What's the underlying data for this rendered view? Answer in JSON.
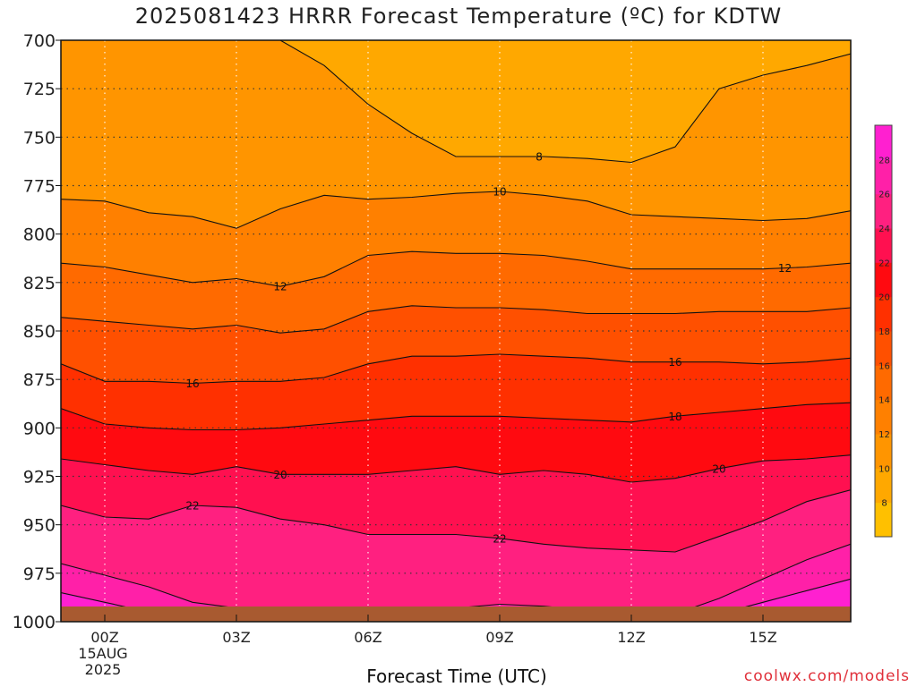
{
  "chart_data": {
    "type": "contour",
    "title": "2025081423 HRRR Forecast Temperature (ºC) for KDTW",
    "xlabel": "Forecast Time (UTC)",
    "ylabel": "",
    "credit": "coolwx.com/models",
    "x_ticks": [
      {
        "value": 1,
        "label": "00Z",
        "sub": [
          "15AUG",
          "2025"
        ]
      },
      {
        "value": 4,
        "label": "03Z"
      },
      {
        "value": 7,
        "label": "06Z"
      },
      {
        "value": 10,
        "label": "09Z"
      },
      {
        "value": 13,
        "label": "12Z"
      },
      {
        "value": 16,
        "label": "15Z"
      }
    ],
    "x_range": [
      0,
      18
    ],
    "y_range": [
      700,
      1000
    ],
    "y_axis_inverted": true,
    "y_ticks": [
      700,
      725,
      750,
      775,
      800,
      825,
      850,
      875,
      900,
      925,
      950,
      975,
      1000
    ],
    "grid": "dotted",
    "x_hours": [
      0,
      1,
      2,
      3,
      4,
      5,
      6,
      7,
      8,
      9,
      10,
      11,
      12,
      13,
      14,
      15,
      16,
      17,
      18
    ],
    "isotherms": [
      {
        "temp": 8,
        "p": [
          698,
          698,
          698,
          698,
          700,
          700,
          713,
          733,
          748,
          760,
          760,
          760,
          761,
          763,
          755,
          725,
          718,
          713,
          707
        ],
        "label_x": 10.9
      },
      {
        "temp": 10,
        "p": [
          782,
          783,
          789,
          791,
          797,
          787,
          780,
          782,
          781,
          779,
          778,
          780,
          783,
          790,
          791,
          792,
          793,
          792,
          788
        ],
        "label_x": 10
      },
      {
        "temp": 12,
        "p": [
          815,
          817,
          821,
          825,
          823,
          827,
          822,
          811,
          809,
          810,
          810,
          811,
          814,
          818,
          818,
          818,
          818,
          817,
          815
        ],
        "label_x": 5,
        "label2_x": 16.5
      },
      {
        "temp": 14,
        "p": [
          843,
          845,
          847,
          849,
          847,
          851,
          849,
          840,
          837,
          838,
          838,
          839,
          841,
          841,
          841,
          840,
          840,
          840,
          838
        ],
        "label_x": null
      },
      {
        "temp": 16,
        "p": [
          867,
          876,
          876,
          877,
          876,
          876,
          874,
          867,
          863,
          863,
          862,
          863,
          864,
          866,
          866,
          866,
          867,
          866,
          864
        ],
        "label_x": 3,
        "label2_x": 14
      },
      {
        "temp": 18,
        "p": [
          890,
          898,
          900,
          901,
          901,
          900,
          898,
          896,
          894,
          894,
          894,
          895,
          896,
          897,
          894,
          892,
          890,
          888,
          887
        ],
        "label_x": 14
      },
      {
        "temp": 20,
        "p": [
          916,
          919,
          922,
          924,
          920,
          924,
          924,
          924,
          922,
          920,
          924,
          922,
          924,
          928,
          926,
          921,
          917,
          916,
          914
        ],
        "label_x": 5,
        "label2_x": 15
      },
      {
        "temp": 22,
        "p": [
          940,
          946,
          947,
          940,
          941,
          947,
          950,
          955,
          955,
          955,
          957,
          960,
          962,
          963,
          964,
          956,
          948,
          938,
          932
        ],
        "label_x": 3,
        "label2_x": 10
      },
      {
        "temp": 24,
        "p": [
          970,
          976,
          982,
          990,
          993,
          995,
          995,
          995,
          994,
          993,
          991,
          992,
          994,
          996,
          996,
          988,
          978,
          968,
          960
        ],
        "label_x": null
      },
      {
        "temp": 26,
        "p": [
          985,
          990,
          995,
          999,
          1000,
          1000,
          1000,
          1000,
          999,
          998,
          997,
          999,
          1000,
          1000,
          1000,
          996,
          990,
          984,
          978
        ],
        "label_x": null
      }
    ],
    "colorbar": {
      "levels": [
        6,
        8,
        10,
        12,
        14,
        16,
        18,
        20,
        22,
        24,
        26,
        28,
        30
      ],
      "tick_labels": [
        "8",
        "10",
        "12",
        "14",
        "16",
        "18",
        "20",
        "22",
        "24",
        "26",
        "28"
      ],
      "colors": [
        "#ffc000",
        "#ffa800",
        "#ff9500",
        "#ff8000",
        "#ff6a00",
        "#ff5000",
        "#ff3000",
        "#ff0a10",
        "#ff1050",
        "#ff2080",
        "#ff20a8",
        "#ff20d0"
      ]
    },
    "ground_color": "#a85a30"
  }
}
